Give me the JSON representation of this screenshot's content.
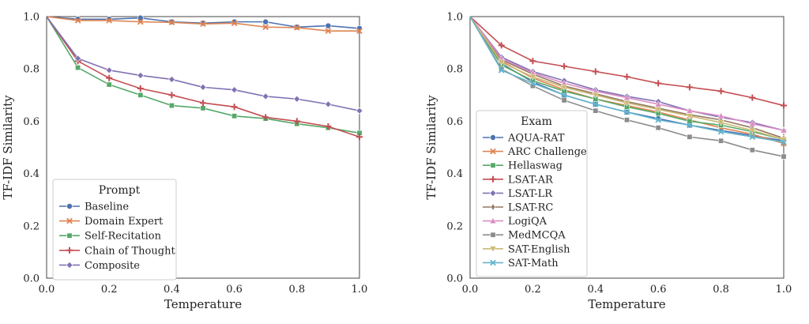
{
  "chart_data": [
    {
      "type": "line",
      "xlabel": "Temperature",
      "ylabel": "TF-IDF Similarity",
      "xlim": [
        0,
        1
      ],
      "ylim": [
        0,
        1
      ],
      "x_ticks": [
        "0.0",
        "0.2",
        "0.4",
        "0.6",
        "0.8",
        "1.0"
      ],
      "y_ticks": [
        "0.0",
        "0.2",
        "0.4",
        "0.6",
        "0.8",
        "1.0"
      ],
      "grid": false,
      "legend_title": "Prompt",
      "legend_position": "lower-left",
      "x": [
        0.0,
        0.1,
        0.2,
        0.3,
        0.4,
        0.5,
        0.6,
        0.7,
        0.8,
        0.9,
        1.0
      ],
      "series": [
        {
          "name": "Baseline",
          "color": "#4c72b0",
          "marker": "circle",
          "values": [
            1.0,
            0.99,
            0.99,
            0.995,
            0.98,
            0.975,
            0.98,
            0.98,
            0.96,
            0.965,
            0.955
          ]
        },
        {
          "name": "Domain Expert",
          "color": "#dd8452",
          "marker": "x",
          "values": [
            1.0,
            0.985,
            0.985,
            0.98,
            0.978,
            0.972,
            0.975,
            0.96,
            0.958,
            0.945,
            0.945
          ]
        },
        {
          "name": "Self-Recitation",
          "color": "#55a868",
          "marker": "square",
          "values": [
            1.0,
            0.805,
            0.74,
            0.7,
            0.66,
            0.65,
            0.62,
            0.61,
            0.59,
            0.575,
            0.555
          ]
        },
        {
          "name": "Chain of Thought",
          "color": "#c44e52",
          "marker": "plus",
          "values": [
            1.0,
            0.83,
            0.765,
            0.725,
            0.7,
            0.67,
            0.655,
            0.615,
            0.6,
            0.58,
            0.54
          ]
        },
        {
          "name": "Composite",
          "color": "#8172b3",
          "marker": "diamond",
          "values": [
            1.0,
            0.84,
            0.795,
            0.775,
            0.76,
            0.73,
            0.72,
            0.695,
            0.685,
            0.665,
            0.64
          ]
        }
      ]
    },
    {
      "type": "line",
      "xlabel": "Temperature",
      "ylabel": "TF-IDF Similarity",
      "xlim": [
        0,
        1
      ],
      "ylim": [
        0,
        1
      ],
      "x_ticks": [
        "0.0",
        "0.2",
        "0.4",
        "0.6",
        "0.8",
        "1.0"
      ],
      "y_ticks": [
        "0.0",
        "0.2",
        "0.4",
        "0.6",
        "0.8",
        "1.0"
      ],
      "grid": false,
      "legend_title": "Exam",
      "legend_position": "lower-left",
      "x": [
        0.0,
        0.1,
        0.2,
        0.3,
        0.4,
        0.5,
        0.6,
        0.7,
        0.8,
        0.9,
        1.0
      ],
      "series": [
        {
          "name": "AQUA-RAT",
          "color": "#4c72b0",
          "marker": "circle",
          "values": [
            1.0,
            0.82,
            0.75,
            0.7,
            0.665,
            0.635,
            0.61,
            0.585,
            0.565,
            0.545,
            0.525
          ]
        },
        {
          "name": "ARC Challenge",
          "color": "#dd8452",
          "marker": "x",
          "values": [
            1.0,
            0.83,
            0.765,
            0.72,
            0.685,
            0.66,
            0.635,
            0.605,
            0.575,
            0.55,
            0.515
          ]
        },
        {
          "name": "Hellaswag",
          "color": "#55a868",
          "marker": "square",
          "values": [
            1.0,
            0.815,
            0.755,
            0.715,
            0.685,
            0.655,
            0.63,
            0.6,
            0.585,
            0.56,
            0.53
          ]
        },
        {
          "name": "LSAT-AR",
          "color": "#c44e52",
          "marker": "plus",
          "values": [
            1.0,
            0.89,
            0.83,
            0.81,
            0.79,
            0.77,
            0.745,
            0.73,
            0.715,
            0.69,
            0.66
          ]
        },
        {
          "name": "LSAT-LR",
          "color": "#8172b3",
          "marker": "diamond",
          "values": [
            1.0,
            0.845,
            0.79,
            0.755,
            0.72,
            0.695,
            0.675,
            0.64,
            0.615,
            0.595,
            0.565
          ]
        },
        {
          "name": "LSAT-RC",
          "color": "#937860",
          "marker": "thin-diamond",
          "values": [
            1.0,
            0.835,
            0.78,
            0.735,
            0.705,
            0.675,
            0.65,
            0.625,
            0.605,
            0.575,
            0.535
          ]
        },
        {
          "name": "LogiQA",
          "color": "#da8bc3",
          "marker": "triangle-up",
          "values": [
            1.0,
            0.84,
            0.785,
            0.745,
            0.715,
            0.69,
            0.665,
            0.64,
            0.62,
            0.59,
            0.565
          ]
        },
        {
          "name": "MedMCQA",
          "color": "#8c8c8c",
          "marker": "square",
          "values": [
            1.0,
            0.8,
            0.735,
            0.68,
            0.64,
            0.605,
            0.575,
            0.54,
            0.525,
            0.49,
            0.465
          ]
        },
        {
          "name": "SAT-English",
          "color": "#ccb974",
          "marker": "triangle-down",
          "values": [
            1.0,
            0.825,
            0.77,
            0.73,
            0.7,
            0.67,
            0.645,
            0.62,
            0.595,
            0.565,
            0.53
          ]
        },
        {
          "name": "SAT-Math",
          "color": "#64b5cd",
          "marker": "x",
          "values": [
            1.0,
            0.795,
            0.745,
            0.7,
            0.665,
            0.635,
            0.605,
            0.585,
            0.56,
            0.54,
            0.52
          ]
        }
      ]
    }
  ]
}
